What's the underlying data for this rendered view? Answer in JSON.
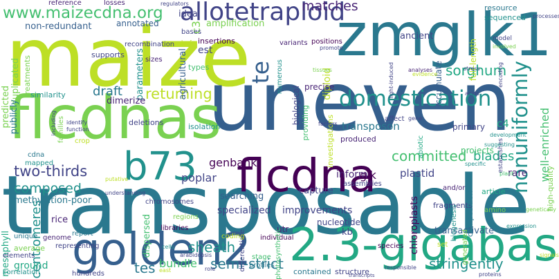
{
  "colors": {
    "background": "#ffffff",
    "palette": [
      "#440154",
      "#482475",
      "#414487",
      "#355f8d",
      "#2a788e",
      "#21918c",
      "#22a884",
      "#44bf70",
      "#7ad151",
      "#bddf26",
      "#fde725"
    ]
  },
  "words": [
    {
      "text": "maize",
      "color": "#bddf26"
    },
    {
      "text": "uneven",
      "color": "#355f8d"
    },
    {
      "text": "transposable",
      "color": "#2a788e"
    },
    {
      "text": "flcdnas",
      "color": "#7ad151"
    },
    {
      "text": "zmglk1",
      "color": "#2a788e"
    },
    {
      "text": "2.3-gigabase",
      "color": "#22a884"
    },
    {
      "text": "golden2",
      "color": "#355f8d"
    },
    {
      "text": "flcdna",
      "color": "#440154"
    },
    {
      "text": "b73",
      "color": "#21918c"
    },
    {
      "text": "allotetraploid",
      "color": "#414487"
    },
    {
      "text": "domestication",
      "color": "#21918c"
    },
    {
      "text": "www.maizecdna.org",
      "color": "#44bf70"
    },
    {
      "text": "nonuniformly",
      "color": "#21918c"
    },
    {
      "text": "te",
      "color": "#355f8d"
    },
    {
      "text": "returning",
      "color": "#bddf26"
    },
    {
      "text": "sorghum",
      "color": "#22a884"
    },
    {
      "text": "two-thirds",
      "color": "#414487"
    },
    {
      "text": "composed",
      "color": "#21918c"
    },
    {
      "text": "committed",
      "color": "#44bf70"
    },
    {
      "text": "semi-strict",
      "color": "#2a788e"
    },
    {
      "text": "stringently",
      "color": "#21918c"
    },
    {
      "text": "sheath",
      "color": "#21918c"
    },
    {
      "text": "matches",
      "color": "#482475"
    },
    {
      "text": "draft",
      "color": "#2a788e"
    },
    {
      "text": "poplar",
      "color": "#414487"
    },
    {
      "text": "genbank",
      "color": "#440154"
    },
    {
      "text": "blades",
      "color": "#22a884"
    },
    {
      "text": "centromeres",
      "color": "#21918c"
    },
    {
      "text": "bundle",
      "color": "#44bf70"
    },
    {
      "text": "tes",
      "color": "#2a788e"
    },
    {
      "text": "well-enriched",
      "color": "#44bf70"
    },
    {
      "text": "diploid",
      "color": "#bddf26"
    },
    {
      "text": "transposon",
      "color": "#2a788e"
    },
    {
      "text": "glk",
      "color": "#440154"
    },
    {
      "text": "plastid",
      "color": "#414487"
    },
    {
      "text": "c4",
      "color": "#22a884"
    },
    {
      "text": "rare",
      "color": "#482475"
    },
    {
      "text": "non-redundant",
      "color": "#355f8d"
    },
    {
      "text": "amplification",
      "color": "#7ad151"
    },
    {
      "text": "ancient",
      "color": "#414487"
    },
    {
      "text": "est",
      "color": "#414487"
    },
    {
      "text": "c3",
      "color": "#7ad151"
    },
    {
      "text": "parameters",
      "color": "#21918c"
    },
    {
      "text": "agricultural",
      "color": "#355f8d"
    },
    {
      "text": "dimerize",
      "color": "#482475"
    },
    {
      "text": "methylation-poor",
      "color": "#2a788e"
    },
    {
      "text": "searching",
      "color": "#355f8d"
    },
    {
      "text": "specialized",
      "color": "#414487"
    },
    {
      "text": "improvements",
      "color": "#414487"
    },
    {
      "text": "capture",
      "color": "#414487"
    },
    {
      "text": "inform",
      "color": "#482475"
    },
    {
      "text": "chloroplasts",
      "color": "#440154"
    },
    {
      "text": "dispersed",
      "color": "#44bf70"
    },
    {
      "text": "rice",
      "color": "#482475"
    },
    {
      "text": "mesophyll",
      "color": "#22a884"
    },
    {
      "text": "ground",
      "color": "#22a884"
    },
    {
      "text": "utr",
      "color": "#482475"
    },
    {
      "text": "kb",
      "color": "#414487"
    },
    {
      "text": "transactivate",
      "color": "#355f8d"
    },
    {
      "text": "nucleotide",
      "color": "#414487"
    },
    {
      "text": "annotated",
      "color": "#355f8d"
    },
    {
      "text": "idea",
      "color": "#414487"
    },
    {
      "text": "insertions",
      "color": "#440154"
    },
    {
      "text": "duplicated",
      "color": "#7ad151"
    },
    {
      "text": "predicted",
      "color": "#7ad151"
    },
    {
      "text": "publicly",
      "color": "#2a788e"
    },
    {
      "text": "supports",
      "color": "#414487"
    },
    {
      "text": "precise",
      "color": "#482475"
    },
    {
      "text": "biological",
      "color": "#414487"
    },
    {
      "text": "projects",
      "color": "#44bf70"
    },
    {
      "text": "primary",
      "color": "#414487"
    },
    {
      "text": "accumulate",
      "color": "#355f8d"
    },
    {
      "text": "full-length",
      "color": "#bddf26"
    },
    {
      "text": "high-quality",
      "color": "#7ad151"
    },
    {
      "text": "sequenced",
      "color": "#21918c"
    },
    {
      "text": "resource",
      "color": "#2a788e"
    },
    {
      "text": "reference",
      "color": "#482475"
    },
    {
      "text": "losses",
      "color": "#482475"
    },
    {
      "text": "bases",
      "color": "#414487"
    },
    {
      "text": "recombination",
      "color": "#414487"
    },
    {
      "text": "positions",
      "color": "#440154"
    },
    {
      "text": "variants",
      "color": "#482475"
    },
    {
      "text": "numerous",
      "color": "#21918c"
    },
    {
      "text": "sizes",
      "color": "#482475"
    },
    {
      "text": "types",
      "color": "#44bf70"
    },
    {
      "text": "treatments",
      "color": "#7ad151"
    },
    {
      "text": "similarity",
      "color": "#21918c"
    },
    {
      "text": "deletions",
      "color": "#414487"
    },
    {
      "text": "isolation",
      "color": "#21918c"
    },
    {
      "text": "providing",
      "color": "#44bf70"
    },
    {
      "text": "investigations",
      "color": "#bddf26"
    },
    {
      "text": "produced",
      "color": "#482475"
    },
    {
      "text": "assemblies",
      "color": "#414487"
    },
    {
      "text": "fragments",
      "color": "#414487"
    },
    {
      "text": "biogenesis",
      "color": "#21918c"
    },
    {
      "text": "composition",
      "color": "#2a788e"
    },
    {
      "text": "article",
      "color": "#22a884"
    },
    {
      "text": "abiotic",
      "color": "#22a884"
    },
    {
      "text": "affect",
      "color": "#414487"
    },
    {
      "text": "families",
      "color": "#7ad151"
    },
    {
      "text": "crop",
      "color": "#bddf26"
    },
    {
      "text": "cdna",
      "color": "#2a788e"
    },
    {
      "text": "mapped",
      "color": "#21918c"
    },
    {
      "text": "chromosomes",
      "color": "#414487"
    },
    {
      "text": "libraries",
      "color": "#440154"
    },
    {
      "text": "report",
      "color": "#2a788e"
    },
    {
      "text": "genome",
      "color": "#482475"
    },
    {
      "text": "unique",
      "color": "#2a788e"
    },
    {
      "text": "average",
      "color": "#7ad151"
    },
    {
      "text": "elements",
      "color": "#414487"
    },
    {
      "text": "correlation",
      "color": "#21918c"
    },
    {
      "text": "hundreds",
      "color": "#414487"
    },
    {
      "text": "representing",
      "color": "#414487"
    },
    {
      "text": "differentiate",
      "color": "#414487"
    },
    {
      "text": "individual",
      "color": "#440154"
    },
    {
      "text": "photosynthetic",
      "color": "#44bf70"
    },
    {
      "text": "stage",
      "color": "#44bf70"
    },
    {
      "text": "profiles",
      "color": "#2a788e"
    },
    {
      "text": "contained",
      "color": "#2a788e"
    },
    {
      "text": "structure",
      "color": "#414487"
    },
    {
      "text": "and/or",
      "color": "#482475"
    },
    {
      "text": "generated",
      "color": "#7ad151"
    },
    {
      "text": "amino",
      "color": "#7ad151"
    },
    {
      "text": "species",
      "color": "#440154"
    },
    {
      "text": "set",
      "color": "#bddf26"
    },
    {
      "text": "regions",
      "color": "#7ad151"
    },
    {
      "text": "coding",
      "color": "#bddf26"
    },
    {
      "text": "light-induced",
      "color": "#414487"
    },
    {
      "text": "analyses",
      "color": "#482475"
    },
    {
      "text": "evidence",
      "color": "#bddf26"
    },
    {
      "text": "tissues",
      "color": "#7ad151"
    },
    {
      "text": "promote",
      "color": "#414487"
    },
    {
      "text": "processes",
      "color": "#414487"
    },
    {
      "text": "model",
      "color": "#414487"
    },
    {
      "text": "involved",
      "color": "#7ad151"
    },
    {
      "text": "acids",
      "color": "#414487"
    },
    {
      "text": "encoding",
      "color": "#414487"
    },
    {
      "text": "establishes",
      "color": "#414487"
    },
    {
      "text": "development",
      "color": "#21918c"
    },
    {
      "text": "suggesting",
      "color": "#21918c"
    },
    {
      "text": "specific",
      "color": "#21918c"
    },
    {
      "text": "plant",
      "color": "#44bf70"
    },
    {
      "text": "genetically",
      "color": "#7ad151"
    },
    {
      "text": "putative",
      "color": "#bddf26"
    },
    {
      "text": "understanding",
      "color": "#414487"
    },
    {
      "text": "identify",
      "color": "#414487"
    },
    {
      "text": "function",
      "color": "#414487"
    },
    {
      "text": "including",
      "color": "#414487"
    },
    {
      "text": "factors",
      "color": "#414487"
    },
    {
      "text": "gene",
      "color": "#414487"
    },
    {
      "text": "responsible",
      "color": "#414487"
    },
    {
      "text": "expression",
      "color": "#21918c"
    },
    {
      "text": "arabidopsis",
      "color": "#414487"
    },
    {
      "text": "cells",
      "color": "#21918c"
    },
    {
      "text": "transcripts",
      "color": "#414487"
    },
    {
      "text": "proteins",
      "color": "#414487"
    },
    {
      "text": "regulators",
      "color": "#414487"
    },
    {
      "text": "stress",
      "color": "#414487"
    },
    {
      "text": "leaf",
      "color": "#bddf26"
    },
    {
      "text": "east",
      "color": "#bddf26"
    },
    {
      "text": "signals",
      "color": "#bddf26"
    },
    {
      "text": "role",
      "color": "#414487"
    },
    {
      "text": "sheaths",
      "color": "#44bf70"
    }
  ]
}
